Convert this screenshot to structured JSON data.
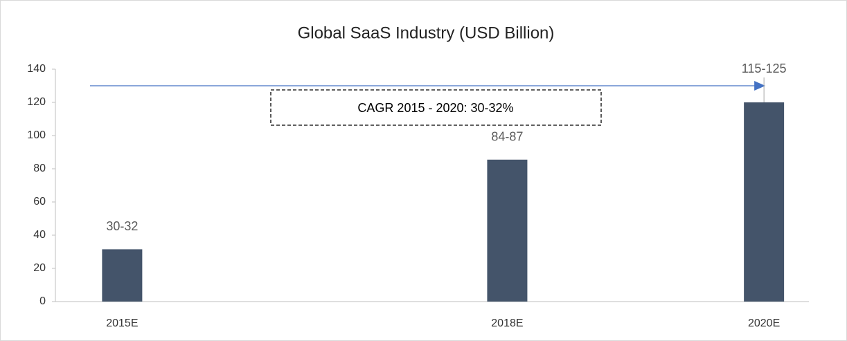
{
  "chart_data": {
    "type": "bar",
    "title": "Global SaaS Industry (USD Billion)",
    "x": [
      2015,
      2018,
      2020
    ],
    "xticks": [
      {
        "value": 2015,
        "label": "2015E"
      },
      {
        "value": 2018,
        "label": "2018E"
      },
      {
        "value": 2020,
        "label": "2020E"
      }
    ],
    "xlim": [
      2014.48,
      2020.35
    ],
    "values": [
      31.5,
      85.5,
      120
    ],
    "value_labels": [
      "30-32",
      "84-87",
      "115-125"
    ],
    "color": "#44546a",
    "ylim": [
      0,
      140
    ],
    "yticks": [
      0,
      20,
      40,
      60,
      80,
      100,
      120,
      140
    ],
    "annotation": "CAGR 2015 - 2020: 30-32%",
    "arrow_color": "#4472c4"
  }
}
